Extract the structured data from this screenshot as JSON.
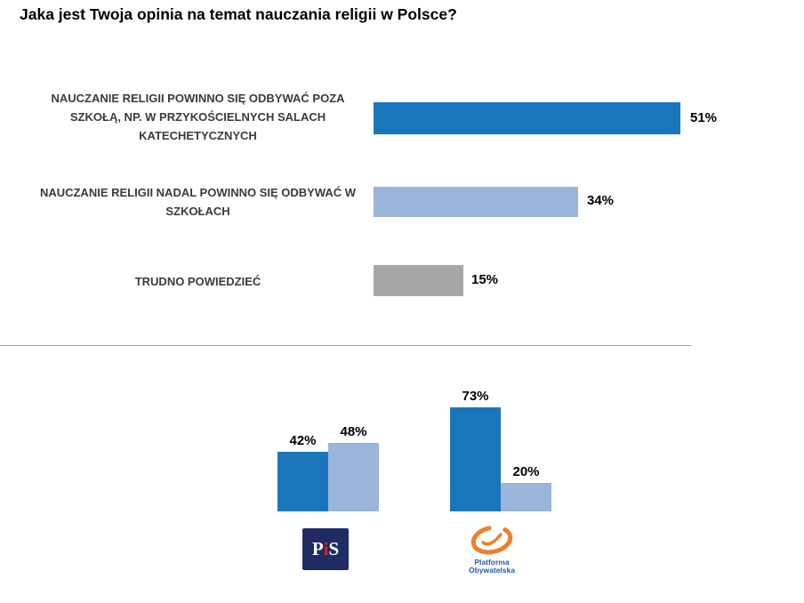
{
  "title": "Jaka jest Twoja opinia na temat nauczania religii w Polsce?",
  "colors": {
    "dark_blue": "#1b75bb",
    "light_blue": "#9ab5d9",
    "gray": "#a6a6a6"
  },
  "chart_data": [
    {
      "type": "bar",
      "orientation": "horizontal",
      "title": "Jaka jest Twoja opinia na temat nauczania religii w Polsce?",
      "categories": [
        "NAUCZANIE RELIGII POWINNO SIĘ ODBYWAĆ POZA SZKOŁĄ, NP. W PRZYKOŚCIELNYCH SALACH KATECHETYCZNYCH",
        "NAUCZANIE RELIGII NADAL POWINNO SIĘ ODBYWAĆ W SZKOŁACH",
        "TRUDNO POWIEDZIEĆ"
      ],
      "values": [
        51,
        34,
        15
      ],
      "value_labels": [
        "51%",
        "34%",
        "15%"
      ],
      "colors": [
        "#1b75bb",
        "#9ab5d9",
        "#a6a6a6"
      ],
      "xlim": [
        0,
        100
      ],
      "grid": false,
      "legend": false
    },
    {
      "type": "bar",
      "orientation": "vertical-grouped",
      "categories": [
        "PiS",
        "Platforma Obywatelska"
      ],
      "series": [
        {
          "color": "#1b75bb",
          "values": [
            42,
            73
          ]
        },
        {
          "color": "#9ab5d9",
          "values": [
            48,
            20
          ]
        }
      ],
      "value_labels": [
        [
          "42%",
          "48%"
        ],
        [
          "73%",
          "20%"
        ]
      ],
      "ylim": [
        0,
        100
      ],
      "grid": false,
      "legend": false
    }
  ],
  "logos": {
    "pis_p": "P",
    "pis_i": "i",
    "pis_s": "S",
    "po_line1": "Platforma",
    "po_line2": "Obywatelska"
  }
}
